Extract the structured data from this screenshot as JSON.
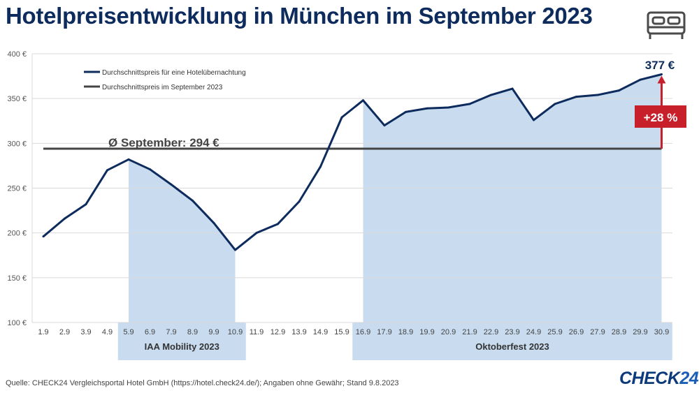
{
  "title": "Hotelpreisentwicklung in München im September 2023",
  "source": "Quelle: CHECK24 Vergleichsportal Hotel GmbH (https://hotel.check24.de/); Angaben ohne Gewähr; Stand 9.8.2023",
  "logo": {
    "part1": "CHECK",
    "part2": "24"
  },
  "colors": {
    "line": "#0d2b5c",
    "avg_line": "#444444",
    "shading": "#c9dcef",
    "badge": "#c8202b",
    "brand": "#0d3a7a"
  },
  "icons": {
    "header": "bed-icon"
  },
  "chart_data": {
    "type": "line",
    "title": "Hotelpreisentwicklung in München im September 2023",
    "categories": [
      "1.9",
      "2.9",
      "3.9",
      "4.9",
      "5.9",
      "6.9",
      "7.9",
      "8.9",
      "9.9",
      "10.9",
      "11.9",
      "12.9",
      "13.9",
      "14.9",
      "15.9",
      "16.9",
      "17.9",
      "18.9",
      "19.9",
      "20.9",
      "21.9",
      "22.9",
      "23.9",
      "24.9",
      "25.9",
      "26.9",
      "27.9",
      "28.9",
      "29.9",
      "30.9"
    ],
    "series": [
      {
        "name": "Durchschnittspreis für eine Hotelübernachtung",
        "values": [
          196,
          216,
          232,
          270,
          282,
          271,
          254,
          236,
          211,
          181,
          200,
          210,
          235,
          274,
          329,
          348,
          320,
          335,
          339,
          340,
          344,
          354,
          361,
          326,
          344,
          352,
          354,
          359,
          371,
          377
        ]
      },
      {
        "name": "Durchschnittspreis im September 2023",
        "values": [
          294,
          294,
          294,
          294,
          294,
          294,
          294,
          294,
          294,
          294,
          294,
          294,
          294,
          294,
          294,
          294,
          294,
          294,
          294,
          294,
          294,
          294,
          294,
          294,
          294,
          294,
          294,
          294,
          294,
          294
        ]
      }
    ],
    "yticks": [
      "100 €",
      "150 €",
      "200 €",
      "250 €",
      "300 €",
      "350 €",
      "400 €"
    ],
    "ylim": [
      100,
      400
    ],
    "grid": true,
    "legend_position": "top-left",
    "shaded_ranges": [
      {
        "label": "IAA Mobility 2023",
        "from": "5.9",
        "to": "10.9"
      },
      {
        "label": "Oktoberfest 2023",
        "from": "16.9",
        "to": "30.9"
      }
    ],
    "annotations": {
      "average": "Ø September: 294 €",
      "last_value": "377 €",
      "increase": "+28 %"
    }
  }
}
